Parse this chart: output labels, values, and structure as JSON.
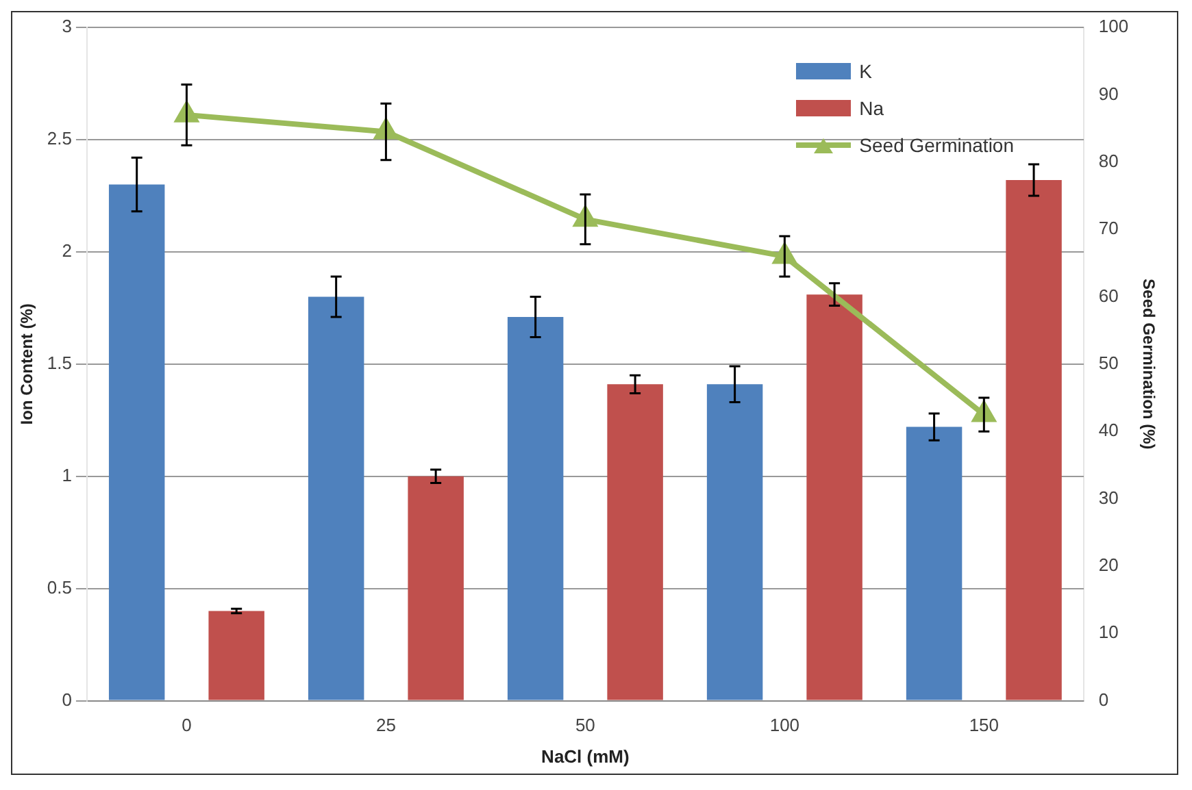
{
  "chart_data": {
    "type": "bar",
    "xlabel": "NaCl (mM)",
    "ylabel": "Ion Content (%)",
    "y2label": "Seed Germination (%)",
    "categories": [
      "0",
      "25",
      "50",
      "100",
      "150"
    ],
    "series": [
      {
        "name": "K",
        "color": "#4f81bd",
        "values": [
          2.3,
          1.8,
          1.71,
          1.41,
          1.22
        ],
        "errors": [
          0.12,
          0.09,
          0.09,
          0.08,
          0.06
        ]
      },
      {
        "name": "Na",
        "color": "#c0504d",
        "values": [
          0.4,
          1.0,
          1.41,
          1.81,
          2.32
        ],
        "errors": [
          0.01,
          0.03,
          0.04,
          0.05,
          0.07
        ]
      },
      {
        "name": "Seed Germination",
        "type": "line",
        "axis": "y2",
        "color": "#9bbb59",
        "marker": "triangle",
        "values": [
          87,
          84.5,
          71.5,
          66,
          42.5
        ],
        "errors": [
          4.5,
          4.2,
          3.7,
          3,
          2.5
        ]
      }
    ],
    "ylim": [
      0,
      3
    ],
    "yticks": [
      0,
      0.5,
      1,
      1.5,
      2,
      2.5,
      3
    ],
    "y2lim": [
      0,
      100
    ],
    "y2ticks": [
      0,
      10,
      20,
      30,
      40,
      50,
      60,
      70,
      80,
      90,
      100
    ],
    "grid": "y",
    "legend": "top right"
  }
}
